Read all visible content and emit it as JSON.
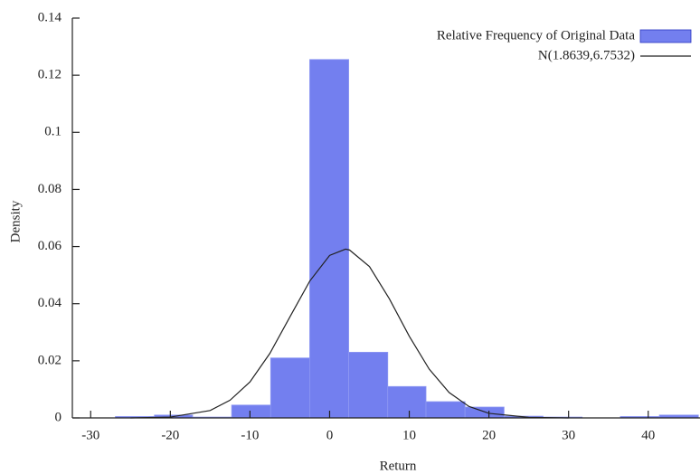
{
  "chart_data": {
    "type": "histogram",
    "x_label": "Return",
    "y_label": "Density",
    "name": "Relative Frequency of Original Data",
    "color": "#5a68ec",
    "bins": [
      -26.9,
      -22.0,
      -17.2,
      -12.3,
      -7.4,
      -2.5,
      2.4,
      7.3,
      12.1,
      17.0,
      21.9,
      26.8,
      31.7,
      36.5,
      41.4,
      46.3
    ],
    "values": [
      0.0005,
      0.001,
      0.0003,
      0.0045,
      0.021,
      0.1255,
      0.023,
      0.011,
      0.0057,
      0.0038,
      0.0006,
      0.0003,
      0,
      0.0005,
      0.001
    ],
    "lines": [
      {
        "name": "N(1.8639,6.7532)",
        "color": "#222222",
        "x": [
          -25,
          -20,
          -15,
          -12.5,
          -10,
          -7.5,
          -5,
          -2.5,
          0,
          2,
          2.5,
          5,
          7.5,
          10,
          12.5,
          15,
          17.5,
          20,
          25,
          30
        ],
        "y": [
          0.0,
          0.0003,
          0.0026,
          0.0062,
          0.0126,
          0.0226,
          0.0353,
          0.0479,
          0.0569,
          0.0591,
          0.0588,
          0.053,
          0.0417,
          0.0286,
          0.0171,
          0.0089,
          0.004,
          0.0016,
          0.0002,
          0.0
        ]
      }
    ],
    "xlim": [
      -32.3,
      46.5
    ],
    "ylim": [
      0,
      0.14
    ],
    "xticks": [
      -30,
      -20,
      -10,
      0,
      10,
      20,
      30,
      40
    ],
    "yticks": [
      0,
      0.02,
      0.04,
      0.06,
      0.08,
      0.1,
      0.12,
      0.14
    ],
    "legend": "top-right"
  }
}
